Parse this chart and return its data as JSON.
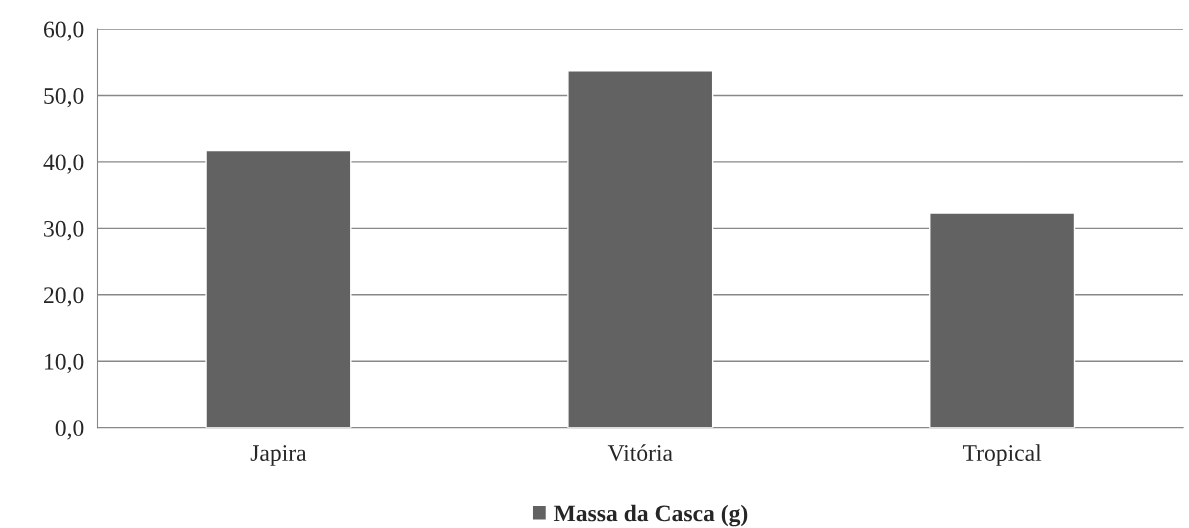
{
  "chart_data": {
    "type": "bar",
    "categories": [
      "Japira",
      "Vitória",
      "Tropical"
    ],
    "series": [
      {
        "name": "Massa da Casca (g)",
        "color": "#626262",
        "values": [
          41.7,
          53.7,
          32.3
        ]
      }
    ],
    "ylim": [
      0,
      60
    ],
    "yticks": [
      {
        "value": 0,
        "label": "0,0"
      },
      {
        "value": 10,
        "label": "10,0"
      },
      {
        "value": 20,
        "label": "20,0"
      },
      {
        "value": 30,
        "label": "30,0"
      },
      {
        "value": 40,
        "label": "40,0"
      },
      {
        "value": 50,
        "label": "50,0"
      },
      {
        "value": 60,
        "label": "60,0"
      }
    ],
    "grid": "y",
    "legend": "bottom"
  }
}
